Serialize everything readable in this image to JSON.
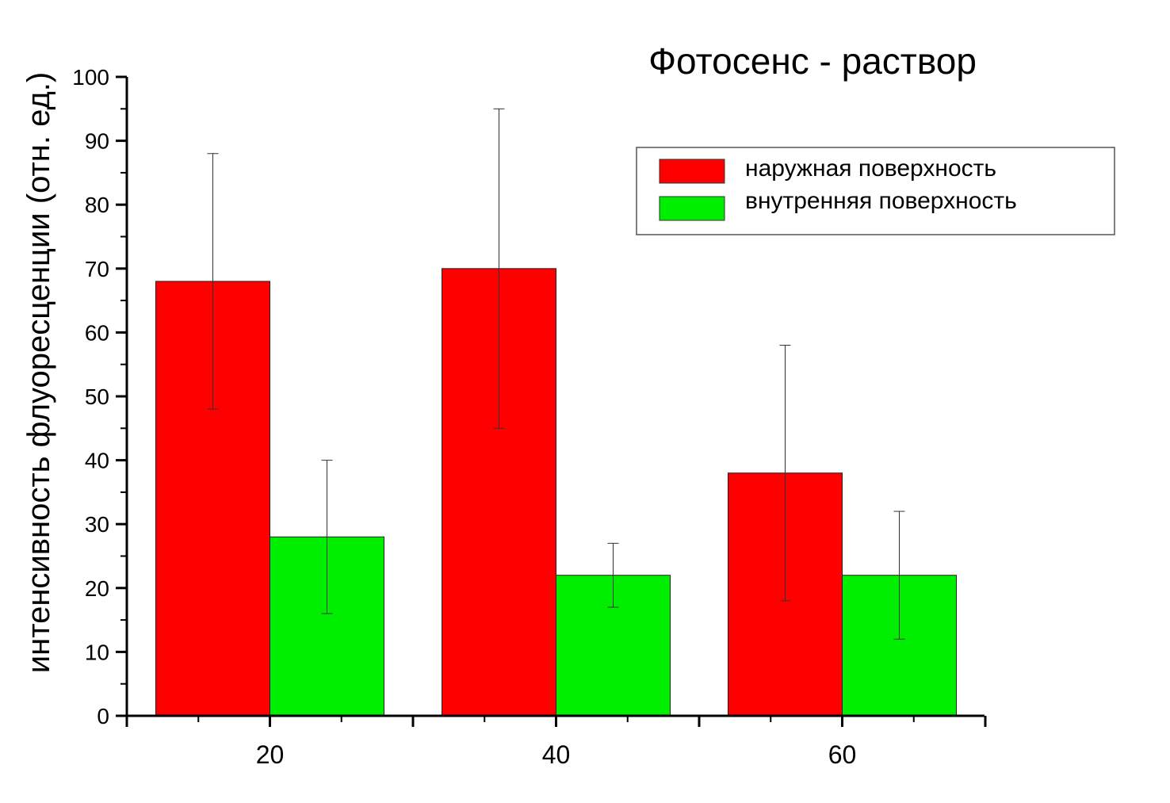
{
  "chart_data": {
    "type": "bar",
    "title": "Фотосенс - раствор",
    "xlabel": "",
    "ylabel": "интенсивность флуоресценции  (отн. ед.)",
    "categories": [
      "20",
      "40",
      "60"
    ],
    "series": [
      {
        "name": "наружная поверхность",
        "color": "#ff0000",
        "values": [
          68,
          70,
          38
        ],
        "error_low": [
          48,
          45,
          18
        ],
        "error_high": [
          88,
          95,
          58
        ]
      },
      {
        "name": "внутренняя поверхность",
        "color": "#00ee00",
        "values": [
          28,
          22,
          22
        ],
        "error_low": [
          16,
          17,
          12
        ],
        "error_high": [
          40,
          27,
          32
        ]
      }
    ],
    "ylim": [
      0,
      100
    ],
    "yticks": [
      0,
      10,
      20,
      30,
      40,
      50,
      60,
      70,
      80,
      90,
      100
    ],
    "grid": false,
    "legend_position": "top-right"
  }
}
